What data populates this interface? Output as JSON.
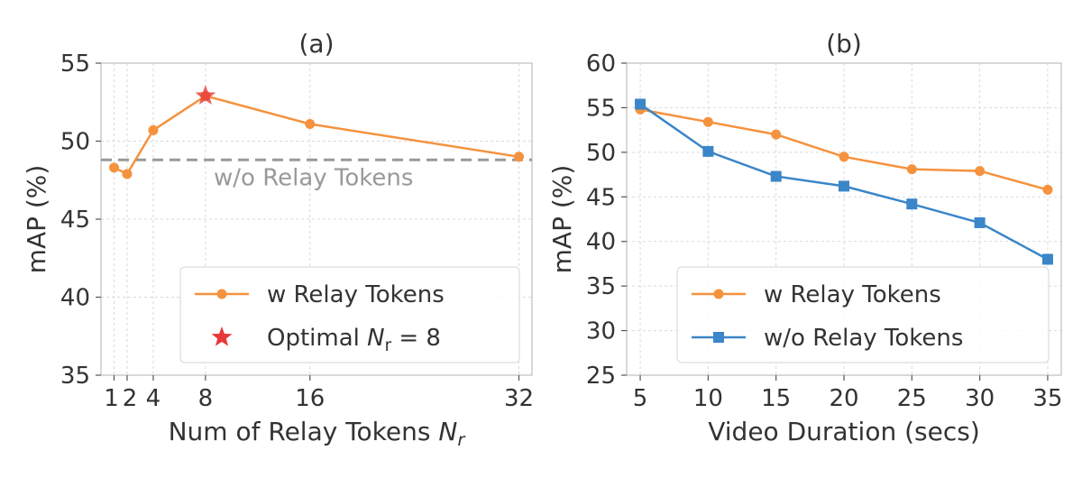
{
  "chart_data": [
    {
      "type": "line",
      "title": "(a)",
      "xlabel": "Num of Relay Tokens N_r",
      "ylabel": "mAP (%)",
      "ylim": [
        35,
        55
      ],
      "xlim": [
        0,
        33
      ],
      "x_ticks": [
        1,
        2,
        4,
        8,
        16,
        32
      ],
      "y_ticks": [
        35,
        40,
        45,
        50,
        55
      ],
      "grid": true,
      "legend_position": "bottom-right",
      "series": [
        {
          "name": "w Relay Tokens",
          "color": "#f5923e",
          "marker": "circle",
          "x": [
            1,
            2,
            4,
            8,
            16,
            32
          ],
          "y": [
            48.3,
            47.9,
            50.7,
            52.9,
            51.1,
            49.0
          ]
        }
      ],
      "optimal": {
        "label": "Optimal N_r = 8",
        "x": 8,
        "y": 52.9,
        "color": "#e8393a",
        "marker": "star"
      },
      "baseline": {
        "label": "w/o Relay Tokens",
        "y": 48.8,
        "color": "#999999",
        "style": "dashed"
      }
    },
    {
      "type": "line",
      "title": "(b)",
      "xlabel": "Video Duration (secs)",
      "ylabel": "mAP (%)",
      "ylim": [
        25,
        60
      ],
      "xlim": [
        4,
        36
      ],
      "x_ticks": [
        5,
        10,
        15,
        20,
        25,
        30,
        35
      ],
      "y_ticks": [
        25,
        30,
        35,
        40,
        45,
        50,
        55,
        60
      ],
      "grid": true,
      "legend_position": "bottom-right",
      "series": [
        {
          "name": "w Relay Tokens",
          "color": "#f5923e",
          "marker": "circle",
          "x": [
            5,
            10,
            15,
            20,
            25,
            30,
            35
          ],
          "y": [
            54.8,
            53.4,
            52.0,
            49.5,
            48.1,
            47.9,
            45.8
          ]
        },
        {
          "name": "w/o Relay Tokens",
          "color": "#3a86c8",
          "marker": "square",
          "x": [
            5,
            10,
            15,
            20,
            25,
            30,
            35
          ],
          "y": [
            55.4,
            50.1,
            47.3,
            46.2,
            44.2,
            42.1,
            38.0
          ]
        }
      ]
    }
  ]
}
